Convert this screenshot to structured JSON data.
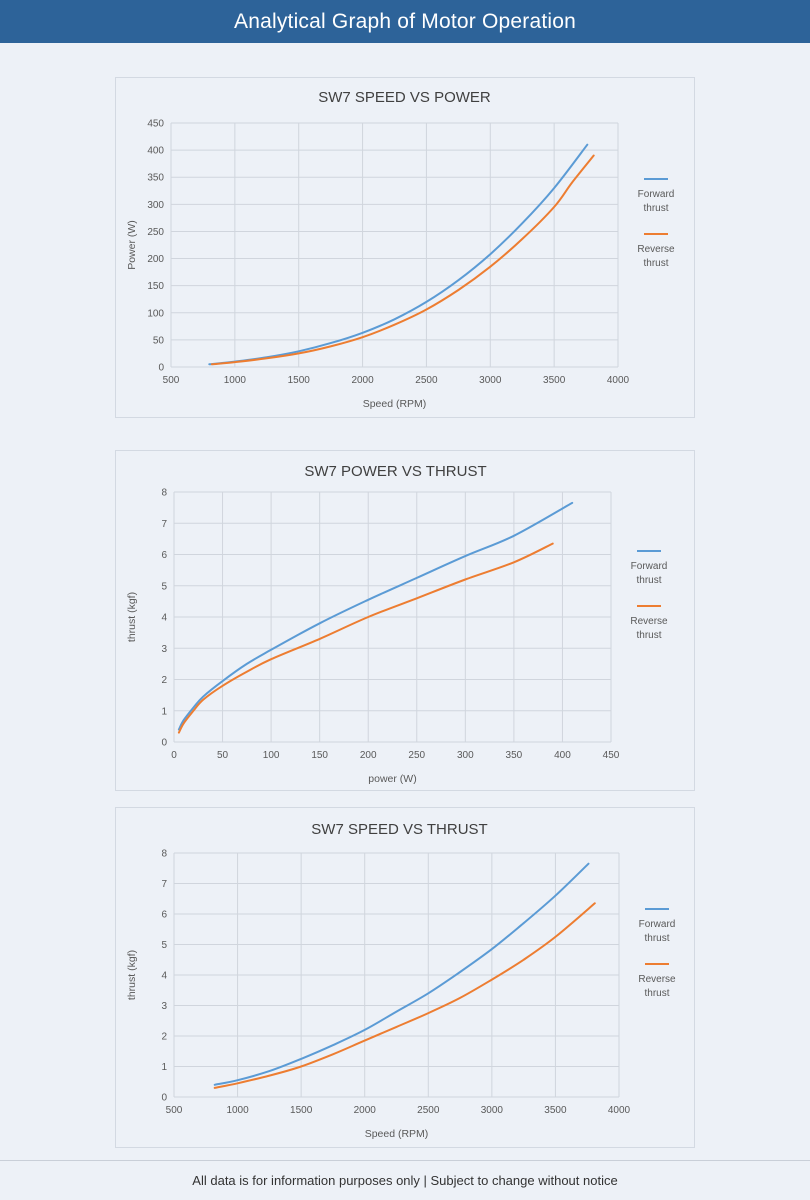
{
  "header": {
    "title": "Analytical Graph of Motor Operation"
  },
  "footer": {
    "text": "All data is for information purposes only | Subject to change without notice"
  },
  "colors": {
    "header_bg": "#2d6399",
    "forward": "#5b9bd5",
    "reverse": "#ed7d31",
    "grid": "#d0d5dd"
  },
  "chart_data": [
    {
      "type": "line",
      "title": "SW7 SPEED VS POWER",
      "xlabel": "Speed (RPM)",
      "ylabel": "Power (W)",
      "xlim": [
        500,
        4000
      ],
      "ylim": [
        0,
        450
      ],
      "xticks": [
        500,
        1000,
        1500,
        2000,
        2500,
        3000,
        3500,
        4000
      ],
      "yticks": [
        0,
        50,
        100,
        150,
        200,
        250,
        300,
        350,
        400,
        450
      ],
      "grid": true,
      "legend_position": "right",
      "series": [
        {
          "name": "Forward thrust",
          "color": "#5b9bd5",
          "points": [
            [
              800,
              5
            ],
            [
              1000,
              10
            ],
            [
              1250,
              18
            ],
            [
              1500,
              29
            ],
            [
              1750,
              44
            ],
            [
              2000,
              63
            ],
            [
              2250,
              88
            ],
            [
              2500,
              120
            ],
            [
              2750,
              160
            ],
            [
              3000,
              208
            ],
            [
              3250,
              265
            ],
            [
              3500,
              330
            ],
            [
              3760,
              410
            ]
          ]
        },
        {
          "name": "Reverse thrust",
          "color": "#ed7d31",
          "points": [
            [
              820,
              5
            ],
            [
              1000,
              9
            ],
            [
              1250,
              16
            ],
            [
              1500,
              25
            ],
            [
              1750,
              38
            ],
            [
              2000,
              55
            ],
            [
              2250,
              78
            ],
            [
              2500,
              106
            ],
            [
              2750,
              142
            ],
            [
              3000,
              185
            ],
            [
              3250,
              236
            ],
            [
              3500,
              295
            ],
            [
              3640,
              340
            ],
            [
              3810,
              390
            ]
          ]
        }
      ]
    },
    {
      "type": "line",
      "title": "SW7 POWER VS THRUST",
      "xlabel": "power (W)",
      "ylabel": "thrust (kgf)",
      "xlim": [
        0,
        450
      ],
      "ylim": [
        0,
        8
      ],
      "xticks": [
        0,
        50,
        100,
        150,
        200,
        250,
        300,
        350,
        400,
        450
      ],
      "yticks": [
        0,
        1,
        2,
        3,
        4,
        5,
        6,
        7,
        8
      ],
      "grid": true,
      "legend_position": "right",
      "series": [
        {
          "name": "Forward thrust",
          "color": "#5b9bd5",
          "points": [
            [
              5,
              0.4
            ],
            [
              10,
              0.7
            ],
            [
              20,
              1.1
            ],
            [
              30,
              1.45
            ],
            [
              50,
              1.95
            ],
            [
              75,
              2.5
            ],
            [
              100,
              2.95
            ],
            [
              150,
              3.8
            ],
            [
              200,
              4.55
            ],
            [
              250,
              5.25
            ],
            [
              300,
              5.95
            ],
            [
              350,
              6.6
            ],
            [
              410,
              7.65
            ]
          ]
        },
        {
          "name": "Reverse thrust",
          "color": "#ed7d31",
          "points": [
            [
              5,
              0.3
            ],
            [
              10,
              0.6
            ],
            [
              20,
              1.0
            ],
            [
              30,
              1.35
            ],
            [
              50,
              1.8
            ],
            [
              75,
              2.25
            ],
            [
              100,
              2.65
            ],
            [
              150,
              3.3
            ],
            [
              200,
              4.0
            ],
            [
              250,
              4.6
            ],
            [
              300,
              5.2
            ],
            [
              350,
              5.75
            ],
            [
              390,
              6.35
            ]
          ]
        }
      ]
    },
    {
      "type": "line",
      "title": "SW7 SPEED VS THRUST",
      "xlabel": "Speed (RPM)",
      "ylabel": "thrust (kgf)",
      "xlim": [
        500,
        4000
      ],
      "ylim": [
        0,
        8
      ],
      "xticks": [
        500,
        1000,
        1500,
        2000,
        2500,
        3000,
        3500,
        4000
      ],
      "yticks": [
        0,
        1,
        2,
        3,
        4,
        5,
        6,
        7,
        8
      ],
      "grid": true,
      "legend_position": "right",
      "series": [
        {
          "name": "Forward thrust",
          "color": "#5b9bd5",
          "points": [
            [
              820,
              0.4
            ],
            [
              1000,
              0.55
            ],
            [
              1250,
              0.85
            ],
            [
              1500,
              1.25
            ],
            [
              1750,
              1.7
            ],
            [
              2000,
              2.2
            ],
            [
              2250,
              2.8
            ],
            [
              2500,
              3.4
            ],
            [
              2750,
              4.1
            ],
            [
              3000,
              4.85
            ],
            [
              3250,
              5.7
            ],
            [
              3500,
              6.6
            ],
            [
              3760,
              7.65
            ]
          ]
        },
        {
          "name": "Reverse thrust",
          "color": "#ed7d31",
          "points": [
            [
              820,
              0.3
            ],
            [
              1000,
              0.45
            ],
            [
              1250,
              0.7
            ],
            [
              1500,
              1.0
            ],
            [
              1750,
              1.4
            ],
            [
              2000,
              1.85
            ],
            [
              2250,
              2.3
            ],
            [
              2500,
              2.75
            ],
            [
              2750,
              3.25
            ],
            [
              3000,
              3.85
            ],
            [
              3250,
              4.5
            ],
            [
              3500,
              5.25
            ],
            [
              3810,
              6.35
            ]
          ]
        }
      ]
    }
  ]
}
